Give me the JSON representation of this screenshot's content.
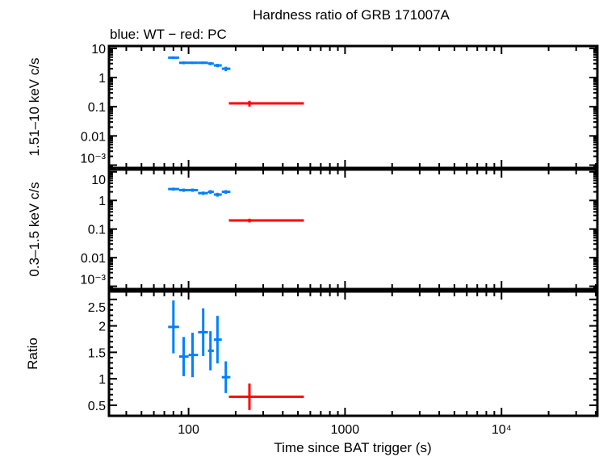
{
  "chart_data": {
    "type": "scatter",
    "title": "Hardness ratio of GRB 171007A",
    "subtitle": "blue: WT − red: PC",
    "xlabel": "Time since BAT trigger (s)",
    "xscale": "log",
    "xlim": [
      31,
      41000
    ],
    "xticks": [
      {
        "v": 100,
        "label": "100"
      },
      {
        "v": 1000,
        "label": "1000"
      },
      {
        "v": 10000,
        "label": "10⁴"
      }
    ],
    "colors": {
      "WT": "#0080ff",
      "PC": "#ff0000"
    },
    "panels": [
      {
        "ylabel": "1.51–10 keV c/s",
        "yscale": "log",
        "ylim": [
          0.0008,
          12
        ],
        "yticks": [
          {
            "v": 10,
            "label": "10"
          },
          {
            "v": 1,
            "label": "1"
          },
          {
            "v": 0.1,
            "label": "0.1"
          },
          {
            "v": 0.01,
            "label": "0.01"
          },
          {
            "v": 0.001,
            "label": "10⁻³"
          }
        ],
        "series": [
          {
            "mode": "WT",
            "points": [
              [
                80,
                74,
                87,
                4.8,
                0.5
              ],
              [
                93,
                87,
                100,
                3.2,
                0.35
              ],
              [
                106,
                100,
                115,
                3.2,
                0.3
              ],
              [
                124,
                115,
                133,
                3.2,
                0.3
              ],
              [
                138,
                133,
                145,
                3.0,
                0.35
              ],
              [
                153,
                145,
                163,
                2.6,
                0.35
              ],
              [
                173,
                163,
                185,
                2.0,
                0.35
              ]
            ]
          },
          {
            "mode": "PC",
            "points": [
              [
                245,
                181,
                546,
                0.13,
                0.03
              ]
            ]
          }
        ]
      },
      {
        "ylabel": "0.3–1.5 keV c/s",
        "yscale": "log",
        "ylim": [
          0.0008,
          12
        ],
        "yticks": [
          {
            "v": 10,
            "label": "10"
          },
          {
            "v": 1,
            "label": "1"
          },
          {
            "v": 0.1,
            "label": "0.1"
          },
          {
            "v": 0.01,
            "label": "0.01"
          },
          {
            "v": 0.001,
            "label": "10⁻³"
          }
        ],
        "series": [
          {
            "mode": "WT",
            "points": [
              [
                80,
                74,
                87,
                2.5,
                0.3
              ],
              [
                93,
                87,
                100,
                2.3,
                0.3
              ],
              [
                106,
                100,
                115,
                2.3,
                0.3
              ],
              [
                124,
                115,
                133,
                1.8,
                0.25
              ],
              [
                138,
                133,
                145,
                2.0,
                0.3
              ],
              [
                153,
                145,
                163,
                1.6,
                0.25
              ],
              [
                173,
                163,
                185,
                2.0,
                0.3
              ]
            ]
          },
          {
            "mode": "PC",
            "points": [
              [
                245,
                181,
                546,
                0.2,
                0.03
              ]
            ]
          }
        ]
      },
      {
        "ylabel": "Ratio",
        "yscale": "linear",
        "ylim": [
          0.3,
          2.65
        ],
        "yticks": [
          {
            "v": 0.5,
            "label": "0.5"
          },
          {
            "v": 1,
            "label": "1"
          },
          {
            "v": 1.5,
            "label": "1.5"
          },
          {
            "v": 2,
            "label": "2"
          },
          {
            "v": 2.5,
            "label": "2.5"
          }
        ],
        "series": [
          {
            "mode": "WT",
            "points": [
              [
                80,
                74,
                87,
                1.98,
                0.5
              ],
              [
                93,
                87,
                100,
                1.42,
                0.37
              ],
              [
                106,
                100,
                115,
                1.45,
                0.42
              ],
              [
                124,
                115,
                133,
                1.88,
                0.45
              ],
              [
                138,
                133,
                145,
                1.53,
                0.37
              ],
              [
                153,
                145,
                163,
                1.74,
                0.45
              ],
              [
                173,
                163,
                185,
                1.03,
                0.3
              ]
            ]
          },
          {
            "mode": "PC",
            "points": [
              [
                245,
                181,
                546,
                0.66,
                0.25
              ]
            ]
          }
        ]
      }
    ]
  }
}
